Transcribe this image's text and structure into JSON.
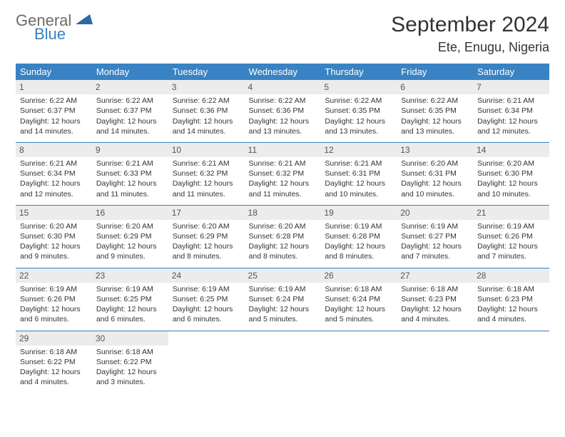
{
  "logo": {
    "text1": "General",
    "text2": "Blue"
  },
  "title": "September 2024",
  "location": "Ete, Enugu, Nigeria",
  "colors": {
    "header_bg": "#3983c4",
    "header_fg": "#ffffff",
    "daynum_bg": "#ececec",
    "rule": "#3b7fbf"
  },
  "weekdays": [
    "Sunday",
    "Monday",
    "Tuesday",
    "Wednesday",
    "Thursday",
    "Friday",
    "Saturday"
  ],
  "weeks": [
    [
      {
        "n": "1",
        "sr": "Sunrise: 6:22 AM",
        "ss": "Sunset: 6:37 PM",
        "dl": "Daylight: 12 hours and 14 minutes."
      },
      {
        "n": "2",
        "sr": "Sunrise: 6:22 AM",
        "ss": "Sunset: 6:37 PM",
        "dl": "Daylight: 12 hours and 14 minutes."
      },
      {
        "n": "3",
        "sr": "Sunrise: 6:22 AM",
        "ss": "Sunset: 6:36 PM",
        "dl": "Daylight: 12 hours and 14 minutes."
      },
      {
        "n": "4",
        "sr": "Sunrise: 6:22 AM",
        "ss": "Sunset: 6:36 PM",
        "dl": "Daylight: 12 hours and 13 minutes."
      },
      {
        "n": "5",
        "sr": "Sunrise: 6:22 AM",
        "ss": "Sunset: 6:35 PM",
        "dl": "Daylight: 12 hours and 13 minutes."
      },
      {
        "n": "6",
        "sr": "Sunrise: 6:22 AM",
        "ss": "Sunset: 6:35 PM",
        "dl": "Daylight: 12 hours and 13 minutes."
      },
      {
        "n": "7",
        "sr": "Sunrise: 6:21 AM",
        "ss": "Sunset: 6:34 PM",
        "dl": "Daylight: 12 hours and 12 minutes."
      }
    ],
    [
      {
        "n": "8",
        "sr": "Sunrise: 6:21 AM",
        "ss": "Sunset: 6:34 PM",
        "dl": "Daylight: 12 hours and 12 minutes."
      },
      {
        "n": "9",
        "sr": "Sunrise: 6:21 AM",
        "ss": "Sunset: 6:33 PM",
        "dl": "Daylight: 12 hours and 11 minutes."
      },
      {
        "n": "10",
        "sr": "Sunrise: 6:21 AM",
        "ss": "Sunset: 6:32 PM",
        "dl": "Daylight: 12 hours and 11 minutes."
      },
      {
        "n": "11",
        "sr": "Sunrise: 6:21 AM",
        "ss": "Sunset: 6:32 PM",
        "dl": "Daylight: 12 hours and 11 minutes."
      },
      {
        "n": "12",
        "sr": "Sunrise: 6:21 AM",
        "ss": "Sunset: 6:31 PM",
        "dl": "Daylight: 12 hours and 10 minutes."
      },
      {
        "n": "13",
        "sr": "Sunrise: 6:20 AM",
        "ss": "Sunset: 6:31 PM",
        "dl": "Daylight: 12 hours and 10 minutes."
      },
      {
        "n": "14",
        "sr": "Sunrise: 6:20 AM",
        "ss": "Sunset: 6:30 PM",
        "dl": "Daylight: 12 hours and 10 minutes."
      }
    ],
    [
      {
        "n": "15",
        "sr": "Sunrise: 6:20 AM",
        "ss": "Sunset: 6:30 PM",
        "dl": "Daylight: 12 hours and 9 minutes."
      },
      {
        "n": "16",
        "sr": "Sunrise: 6:20 AM",
        "ss": "Sunset: 6:29 PM",
        "dl": "Daylight: 12 hours and 9 minutes."
      },
      {
        "n": "17",
        "sr": "Sunrise: 6:20 AM",
        "ss": "Sunset: 6:29 PM",
        "dl": "Daylight: 12 hours and 8 minutes."
      },
      {
        "n": "18",
        "sr": "Sunrise: 6:20 AM",
        "ss": "Sunset: 6:28 PM",
        "dl": "Daylight: 12 hours and 8 minutes."
      },
      {
        "n": "19",
        "sr": "Sunrise: 6:19 AM",
        "ss": "Sunset: 6:28 PM",
        "dl": "Daylight: 12 hours and 8 minutes."
      },
      {
        "n": "20",
        "sr": "Sunrise: 6:19 AM",
        "ss": "Sunset: 6:27 PM",
        "dl": "Daylight: 12 hours and 7 minutes."
      },
      {
        "n": "21",
        "sr": "Sunrise: 6:19 AM",
        "ss": "Sunset: 6:26 PM",
        "dl": "Daylight: 12 hours and 7 minutes."
      }
    ],
    [
      {
        "n": "22",
        "sr": "Sunrise: 6:19 AM",
        "ss": "Sunset: 6:26 PM",
        "dl": "Daylight: 12 hours and 6 minutes."
      },
      {
        "n": "23",
        "sr": "Sunrise: 6:19 AM",
        "ss": "Sunset: 6:25 PM",
        "dl": "Daylight: 12 hours and 6 minutes."
      },
      {
        "n": "24",
        "sr": "Sunrise: 6:19 AM",
        "ss": "Sunset: 6:25 PM",
        "dl": "Daylight: 12 hours and 6 minutes."
      },
      {
        "n": "25",
        "sr": "Sunrise: 6:19 AM",
        "ss": "Sunset: 6:24 PM",
        "dl": "Daylight: 12 hours and 5 minutes."
      },
      {
        "n": "26",
        "sr": "Sunrise: 6:18 AM",
        "ss": "Sunset: 6:24 PM",
        "dl": "Daylight: 12 hours and 5 minutes."
      },
      {
        "n": "27",
        "sr": "Sunrise: 6:18 AM",
        "ss": "Sunset: 6:23 PM",
        "dl": "Daylight: 12 hours and 4 minutes."
      },
      {
        "n": "28",
        "sr": "Sunrise: 6:18 AM",
        "ss": "Sunset: 6:23 PM",
        "dl": "Daylight: 12 hours and 4 minutes."
      }
    ],
    [
      {
        "n": "29",
        "sr": "Sunrise: 6:18 AM",
        "ss": "Sunset: 6:22 PM",
        "dl": "Daylight: 12 hours and 4 minutes."
      },
      {
        "n": "30",
        "sr": "Sunrise: 6:18 AM",
        "ss": "Sunset: 6:22 PM",
        "dl": "Daylight: 12 hours and 3 minutes."
      },
      null,
      null,
      null,
      null,
      null
    ]
  ]
}
